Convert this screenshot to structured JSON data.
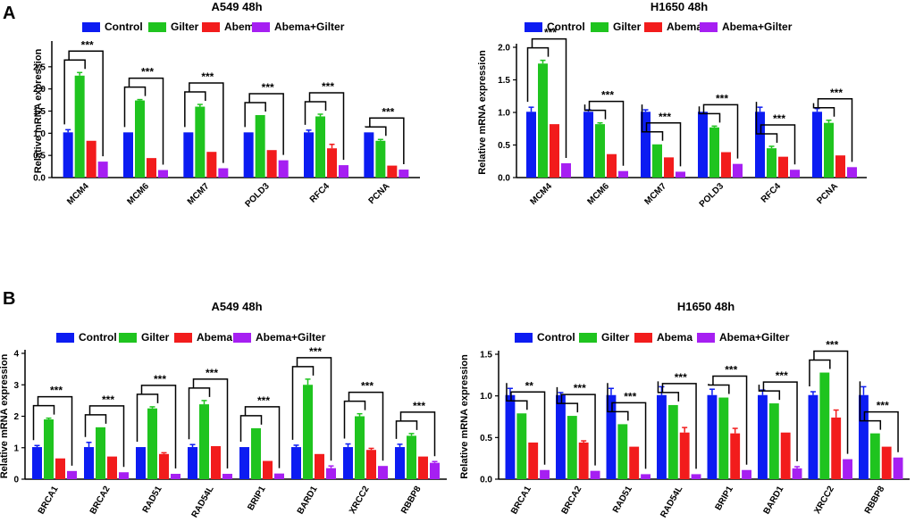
{
  "panels": [
    {
      "label": "A"
    },
    {
      "label": "B"
    }
  ],
  "legend_names": [
    "Control",
    "Gilter",
    "Abema",
    "Abema+Gilter"
  ],
  "series_colors": [
    "#0c1cf2",
    "#1fc41f",
    "#f21c1c",
    "#a61ff2"
  ],
  "chart_data": [
    {
      "type": "bar",
      "title": "A549 48h",
      "ylabel": "Relative mRNA expression",
      "xlabel": "",
      "ylim": [
        0,
        3
      ],
      "yticks": [
        0.0,
        0.5,
        1.0,
        1.5,
        2.0,
        2.5
      ],
      "ytick_labels": [
        "0.0",
        "0.5",
        "1.0",
        "1.5",
        "2.0",
        "2.5"
      ],
      "categories": [
        "MCM4",
        "MCM6",
        "MCM7",
        "POLD3",
        "RFC4",
        "PCNA"
      ],
      "series": [
        {
          "name": "Control",
          "values": [
            1.02,
            1.02,
            1.02,
            1.02,
            1.02,
            1.02
          ],
          "errors": [
            0.06,
            0,
            0,
            0,
            0.05,
            0
          ]
        },
        {
          "name": "Gilter",
          "values": [
            2.3,
            1.74,
            1.6,
            1.41,
            1.38,
            0.83
          ],
          "errors": [
            0.07,
            0.02,
            0.05,
            0,
            0.05,
            0.03
          ]
        },
        {
          "name": "Abema",
          "values": [
            0.83,
            0.44,
            0.58,
            0.62,
            0.66,
            0.27
          ],
          "errors": [
            0,
            0,
            0,
            0,
            0.09,
            0
          ]
        },
        {
          "name": "Abema+Gilter",
          "values": [
            0.36,
            0.17,
            0.21,
            0.39,
            0.28,
            0.18
          ],
          "errors": [
            0,
            0,
            0,
            0,
            0,
            0
          ]
        }
      ],
      "significance": [
        "***",
        "***",
        "***",
        "***",
        "***",
        "***"
      ]
    },
    {
      "type": "bar",
      "title": "H1650 48h",
      "ylabel": "Relative mRNA expression",
      "xlabel": "",
      "ylim": [
        0,
        2
      ],
      "yticks": [
        0.0,
        0.5,
        1.0,
        1.5,
        2.0
      ],
      "ytick_labels": [
        "0.0",
        "0.5",
        "1.0",
        "1.5",
        "2.0"
      ],
      "categories": [
        "MCM4",
        "MCM6",
        "MCM7",
        "POLD3",
        "RFC4",
        "PCNA"
      ],
      "series": [
        {
          "name": "Control",
          "values": [
            1.01,
            1.01,
            1.01,
            1.01,
            1.01,
            1.01
          ],
          "errors": [
            0.07,
            0.03,
            0.03,
            0,
            0.07,
            0.05
          ]
        },
        {
          "name": "Gilter",
          "values": [
            1.75,
            0.82,
            0.51,
            0.77,
            0.45,
            0.84
          ],
          "errors": [
            0.05,
            0.02,
            0,
            0.02,
            0.03,
            0.04
          ]
        },
        {
          "name": "Abema",
          "values": [
            0.82,
            0.36,
            0.31,
            0.39,
            0.32,
            0.34
          ],
          "errors": [
            0,
            0,
            0,
            0,
            0,
            0
          ]
        },
        {
          "name": "Abema+Gilter",
          "values": [
            0.22,
            0.1,
            0.09,
            0.21,
            0.12,
            0.16
          ],
          "errors": [
            0,
            0,
            0,
            0,
            0,
            0
          ]
        }
      ],
      "significance": [
        "***",
        "***",
        "***",
        "***",
        "***",
        "***"
      ]
    },
    {
      "type": "bar",
      "title": "A549 48h",
      "ylabel": "Relative mRNA expression",
      "xlabel": "",
      "ylim": [
        0,
        4
      ],
      "yticks": [
        0,
        1,
        2,
        3,
        4
      ],
      "ytick_labels": [
        "0",
        "1",
        "2",
        "3",
        "4"
      ],
      "categories": [
        "BRCA1",
        "BRCA2",
        "RAD51",
        "RAD54L",
        "BRIP1",
        "BARD1",
        "XRCC2",
        "RBBP8"
      ],
      "series": [
        {
          "name": "Control",
          "values": [
            1.02,
            1.02,
            1.02,
            1.02,
            1.02,
            1.02,
            1.02,
            1.02
          ],
          "errors": [
            0.05,
            0.15,
            0,
            0.08,
            0,
            0.06,
            0.1,
            0.09
          ]
        },
        {
          "name": "Gilter",
          "values": [
            1.9,
            1.65,
            2.25,
            2.38,
            1.62,
            3.0,
            2.0,
            1.38
          ],
          "errors": [
            0.04,
            0,
            0.05,
            0.12,
            0,
            0.18,
            0.08,
            0.07
          ]
        },
        {
          "name": "Abema",
          "values": [
            0.66,
            0.72,
            0.8,
            1.05,
            0.58,
            0.8,
            0.93,
            0.72
          ],
          "errors": [
            0,
            0,
            0.04,
            0,
            0,
            0,
            0.05,
            0
          ]
        },
        {
          "name": "Abema+Gilter",
          "values": [
            0.26,
            0.22,
            0.17,
            0.17,
            0.18,
            0.35,
            0.42,
            0.52
          ],
          "errors": [
            0,
            0,
            0,
            0,
            0,
            0.07,
            0,
            0.04
          ]
        }
      ],
      "significance": [
        "***",
        "***",
        "***",
        "***",
        "***",
        "***",
        "***",
        "***"
      ]
    },
    {
      "type": "bar",
      "title": "H1650 48h",
      "ylabel": "Relative mRNA expression",
      "xlabel": "",
      "ylim": [
        0,
        1.5
      ],
      "yticks": [
        0.0,
        0.5,
        1.0,
        1.5
      ],
      "ytick_labels": [
        "0.0",
        "0.5",
        "1.0",
        "1.5"
      ],
      "categories": [
        "BRCA1",
        "BRCA2",
        "RAD51",
        "RAD54L",
        "BRIP1",
        "BARD1",
        "XRCC2",
        "RBBP8"
      ],
      "series": [
        {
          "name": "Control",
          "values": [
            1.01,
            1.01,
            1.01,
            1.01,
            1.01,
            1.01,
            1.01,
            1.01
          ],
          "errors": [
            0.08,
            0.03,
            0.08,
            0.1,
            0.07,
            0.06,
            0.04,
            0.1
          ]
        },
        {
          "name": "Gilter",
          "values": [
            0.79,
            0.76,
            0.66,
            0.89,
            0.98,
            0.91,
            1.28,
            0.55
          ],
          " errors": [
            0.12,
            0.02,
            0,
            0,
            0.08,
            0,
            0.04,
            0
          ]
        },
        {
          "name": "Abema",
          "values": [
            0.44,
            0.44,
            0.39,
            0.56,
            0.55,
            0.56,
            0.74,
            0.39
          ],
          "errors": [
            0,
            0.02,
            0,
            0.06,
            0.06,
            0,
            0.09,
            0
          ]
        },
        {
          "name": "Abema+Gilter",
          "values": [
            0.11,
            0.1,
            0.06,
            0.06,
            0.11,
            0.13,
            0.24,
            0.26
          ],
          "errors": [
            0,
            0,
            0,
            0,
            0,
            0.02,
            0,
            0
          ]
        }
      ],
      "significance": [
        "**",
        "***",
        "***",
        "***",
        "***",
        "***",
        "***",
        "***"
      ]
    }
  ]
}
